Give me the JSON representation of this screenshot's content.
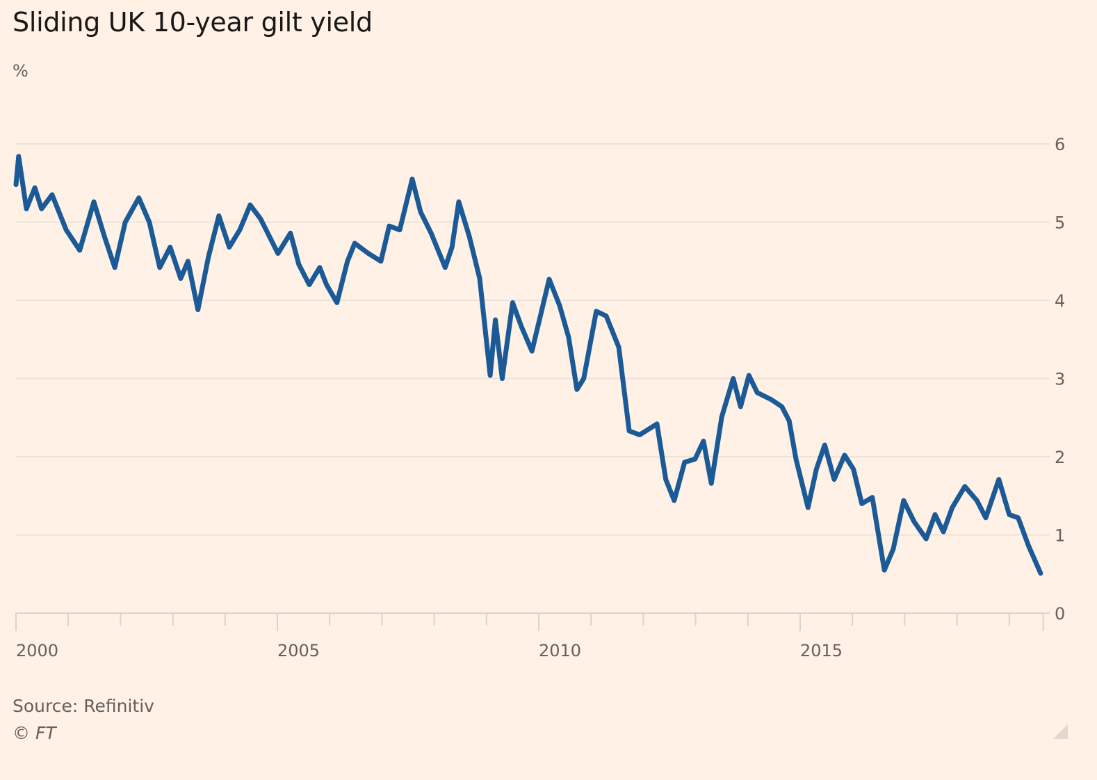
{
  "header": {
    "title": "Sliding UK 10-year gilt yield",
    "unit": "%"
  },
  "footer": {
    "source": "Source: Refinitiv",
    "copyright": "© FT"
  },
  "colors": {
    "background": "#fff1e5",
    "line": "#1b5a96",
    "grid": "#ece3da",
    "text": "#66605c",
    "title": "#1a1817"
  },
  "chart_data": {
    "type": "line",
    "title": "Sliding UK 10-year gilt yield",
    "xlabel": "",
    "ylabel": "%",
    "xlim": [
      2000,
      2019.65
    ],
    "ylim": [
      0,
      6
    ],
    "yticks": [
      0,
      1,
      2,
      3,
      4,
      5,
      6
    ],
    "y_axis_side": "right",
    "xticks_labeled": [
      2000,
      2005,
      2010,
      2015
    ],
    "xticks_minor": [
      2001,
      2002,
      2003,
      2004,
      2006,
      2007,
      2008,
      2009,
      2011,
      2012,
      2013,
      2014,
      2016,
      2017,
      2018,
      2019
    ],
    "grid": true,
    "legend": "none",
    "source": "Source: Refinitiv",
    "series": [
      {
        "name": "UK 10-year gilt yield",
        "x": [
          2000.0,
          2000.05,
          2000.2,
          2000.36,
          2000.49,
          2000.69,
          2000.96,
          2001.22,
          2001.49,
          2001.69,
          2001.89,
          2002.09,
          2002.35,
          2002.55,
          2002.75,
          2002.95,
          2003.15,
          2003.29,
          2003.48,
          2003.68,
          2003.88,
          2004.08,
          2004.28,
          2004.48,
          2004.68,
          2005.01,
          2005.25,
          2005.41,
          2005.61,
          2005.81,
          2005.94,
          2006.14,
          2006.34,
          2006.48,
          2006.74,
          2006.98,
          2007.14,
          2007.34,
          2007.58,
          2007.74,
          2007.94,
          2008.21,
          2008.34,
          2008.47,
          2008.67,
          2008.87,
          2009.07,
          2009.17,
          2009.3,
          2009.5,
          2009.67,
          2009.87,
          2010.2,
          2010.4,
          2010.57,
          2010.73,
          2010.86,
          2011.1,
          2011.29,
          2011.53,
          2011.73,
          2011.93,
          2012.26,
          2012.43,
          2012.59,
          2012.79,
          2012.99,
          2013.15,
          2013.3,
          2013.5,
          2013.72,
          2013.86,
          2014.02,
          2014.18,
          2014.45,
          2014.65,
          2014.79,
          2014.92,
          2015.15,
          2015.31,
          2015.47,
          2015.65,
          2015.85,
          2016.02,
          2016.18,
          2016.38,
          2016.61,
          2016.78,
          2016.98,
          2017.18,
          2017.41,
          2017.58,
          2017.74,
          2017.91,
          2018.15,
          2018.38,
          2018.55,
          2018.8,
          2019.0,
          2019.17,
          2019.37,
          2019.6
        ],
        "values": [
          5.48,
          5.84,
          5.17,
          5.44,
          5.17,
          5.35,
          4.9,
          4.64,
          5.26,
          4.82,
          4.42,
          5.0,
          5.31,
          5.0,
          4.42,
          4.68,
          4.28,
          4.5,
          3.88,
          4.55,
          5.08,
          4.68,
          4.9,
          5.22,
          5.04,
          4.6,
          4.86,
          4.46,
          4.2,
          4.42,
          4.2,
          3.97,
          4.5,
          4.73,
          4.6,
          4.5,
          4.95,
          4.9,
          5.55,
          5.13,
          4.86,
          4.42,
          4.68,
          5.26,
          4.82,
          4.28,
          3.04,
          3.75,
          3.0,
          3.97,
          3.66,
          3.35,
          4.27,
          3.93,
          3.53,
          2.86,
          3.0,
          3.86,
          3.8,
          3.4,
          2.33,
          2.28,
          2.42,
          1.71,
          1.44,
          1.93,
          1.97,
          2.2,
          1.66,
          2.51,
          3.0,
          2.64,
          3.04,
          2.82,
          2.73,
          2.64,
          2.46,
          1.97,
          1.35,
          1.84,
          2.15,
          1.71,
          2.02,
          1.84,
          1.4,
          1.48,
          0.55,
          0.82,
          1.44,
          1.17,
          0.95,
          1.26,
          1.04,
          1.35,
          1.62,
          1.44,
          1.22,
          1.71,
          1.26,
          1.22,
          0.86,
          0.51
        ]
      }
    ]
  }
}
